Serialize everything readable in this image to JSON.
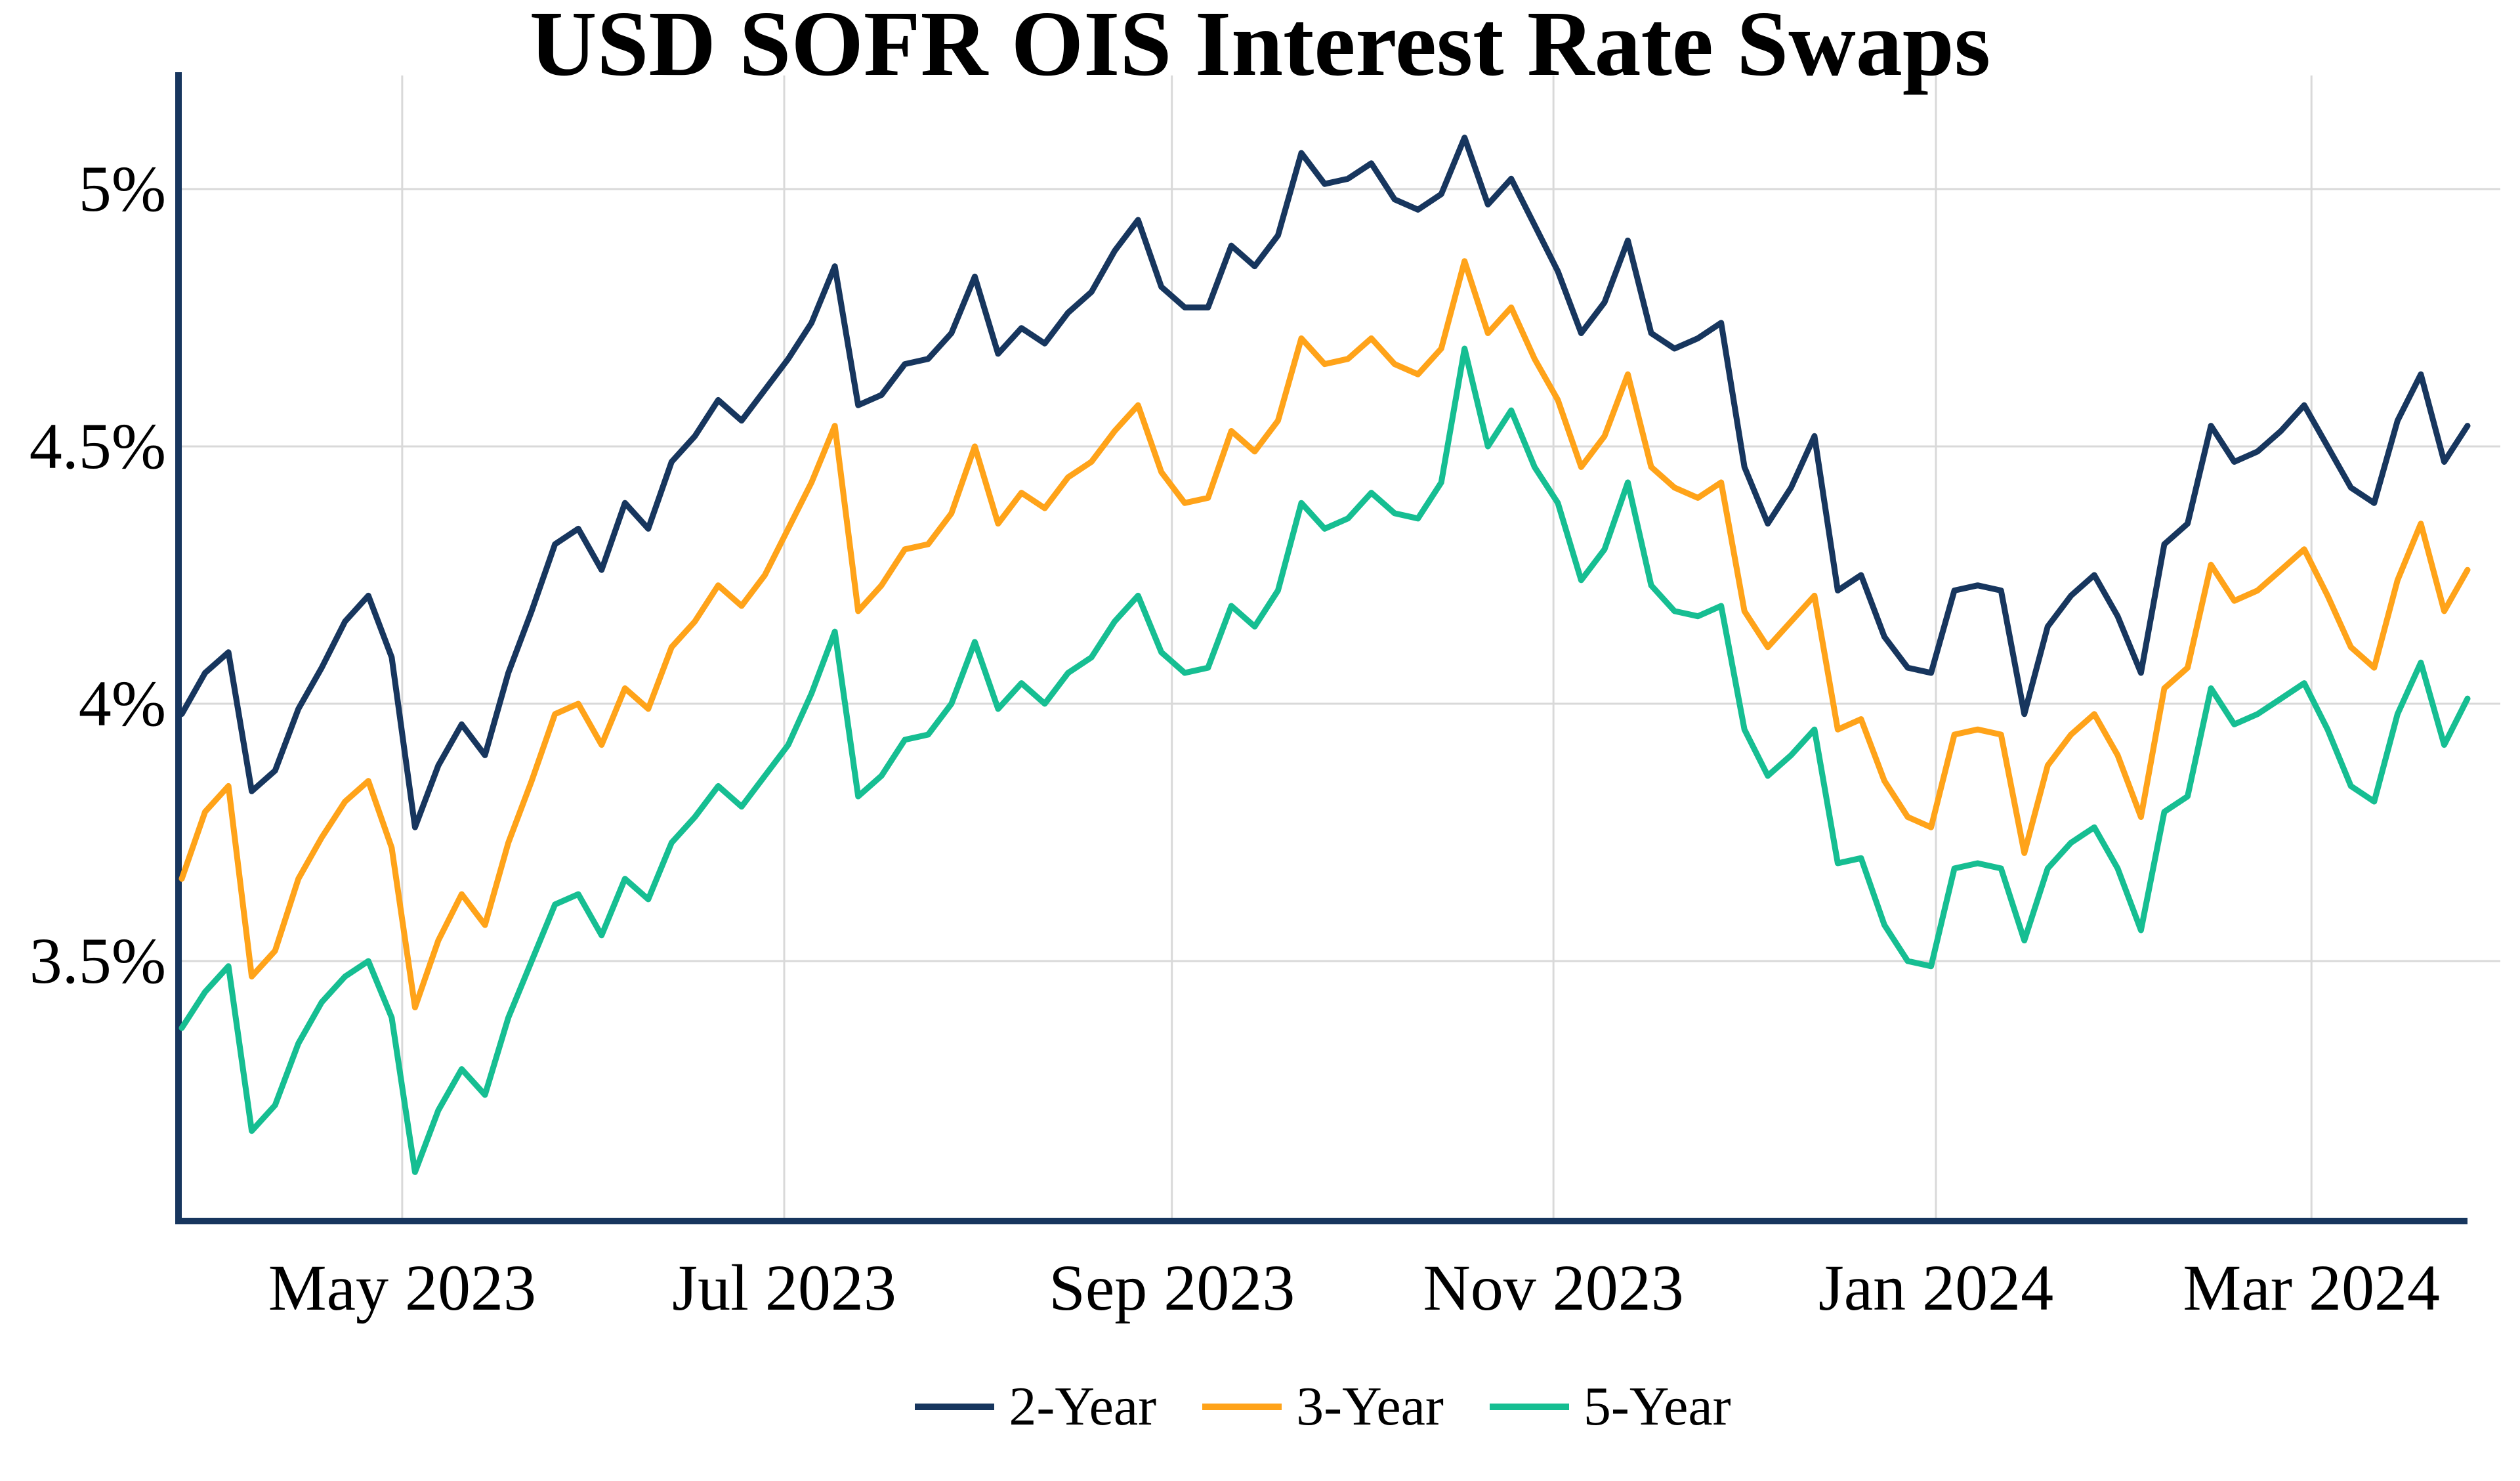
{
  "page": {
    "title": "USD SOFR OIS Interest Rate Swaps"
  },
  "chart_data": {
    "type": "line",
    "title": "USD SOFR OIS Interest Rate Swaps",
    "grid": true,
    "legend_position": "bottom",
    "x_axis": {
      "description": "Trading dates, late March 2023 through late March 2024",
      "start_date": "2023-03-28",
      "end_date": "2024-03-27",
      "n_points": 99,
      "ticks": [
        {
          "label": "May 2023",
          "index": 9.45
        },
        {
          "label": "Jul 2023",
          "index": 25.83
        },
        {
          "label": "Sep 2023",
          "index": 42.45
        },
        {
          "label": "Nov 2023",
          "index": 58.81
        },
        {
          "label": "Jan 2024",
          "index": 75.21
        },
        {
          "label": "Mar 2024",
          "index": 91.31
        }
      ]
    },
    "y_axis": {
      "unit": "%",
      "min": 3.0,
      "max": 5.22,
      "ticks": [
        {
          "label": "5%",
          "value": 5.0
        },
        {
          "label": "4.5%",
          "value": 4.5
        },
        {
          "label": "4%",
          "value": 4.0
        },
        {
          "label": "3.5%",
          "value": 3.5
        }
      ]
    },
    "colors": {
      "axis": "#17365E",
      "gridline": "#D9D9D9",
      "series_2y": "#17365E",
      "series_3y": "#FFA319",
      "series_5y": "#16BE92"
    },
    "series": [
      {
        "name": "2-Year",
        "color": "#17365E",
        "values": [
          3.98,
          4.06,
          4.1,
          3.83,
          3.87,
          3.99,
          4.07,
          4.16,
          4.21,
          4.09,
          3.76,
          3.88,
          3.96,
          3.9,
          4.06,
          4.18,
          4.31,
          4.34,
          4.26,
          4.39,
          4.34,
          4.47,
          4.52,
          4.59,
          4.55,
          4.61,
          4.67,
          4.74,
          4.85,
          4.58,
          4.6,
          4.66,
          4.67,
          4.72,
          4.83,
          4.68,
          4.73,
          4.7,
          4.76,
          4.8,
          4.88,
          4.94,
          4.81,
          4.77,
          4.77,
          4.89,
          4.85,
          4.91,
          5.07,
          5.01,
          5.02,
          5.05,
          4.98,
          4.96,
          4.99,
          5.1,
          4.97,
          5.02,
          4.93,
          4.84,
          4.72,
          4.78,
          4.9,
          4.72,
          4.69,
          4.71,
          4.74,
          4.46,
          4.35,
          4.42,
          4.52,
          4.22,
          4.25,
          4.13,
          4.07,
          4.06,
          4.22,
          4.23,
          4.22,
          3.98,
          4.15,
          4.21,
          4.25,
          4.17,
          4.06,
          4.31,
          4.35,
          4.54,
          4.47,
          4.49,
          4.53,
          4.58,
          4.5,
          4.42,
          4.39,
          4.55,
          4.64,
          4.47,
          4.54
        ]
      },
      {
        "name": "3-Year",
        "color": "#FFA319",
        "values": [
          3.66,
          3.79,
          3.84,
          3.47,
          3.52,
          3.66,
          3.74,
          3.81,
          3.85,
          3.72,
          3.41,
          3.54,
          3.63,
          3.57,
          3.73,
          3.85,
          3.98,
          4.0,
          3.92,
          4.03,
          3.99,
          4.11,
          4.16,
          4.23,
          4.19,
          4.25,
          4.34,
          4.43,
          4.54,
          4.18,
          4.23,
          4.3,
          4.31,
          4.37,
          4.5,
          4.35,
          4.41,
          4.38,
          4.44,
          4.47,
          4.53,
          4.58,
          4.45,
          4.39,
          4.4,
          4.53,
          4.49,
          4.55,
          4.71,
          4.66,
          4.67,
          4.71,
          4.66,
          4.64,
          4.69,
          4.86,
          4.72,
          4.77,
          4.67,
          4.59,
          4.46,
          4.52,
          4.64,
          4.46,
          4.42,
          4.4,
          4.43,
          4.18,
          4.11,
          4.16,
          4.21,
          3.95,
          3.97,
          3.85,
          3.78,
          3.76,
          3.94,
          3.95,
          3.94,
          3.71,
          3.88,
          3.94,
          3.98,
          3.9,
          3.78,
          4.03,
          4.07,
          4.27,
          4.2,
          4.22,
          4.26,
          4.3,
          4.21,
          4.11,
          4.07,
          4.24,
          4.35,
          4.18,
          4.26
        ]
      },
      {
        "name": "5-Year",
        "color": "#16BE92",
        "values": [
          3.37,
          3.44,
          3.49,
          3.17,
          3.22,
          3.34,
          3.42,
          3.47,
          3.5,
          3.39,
          3.09,
          3.21,
          3.29,
          3.24,
          3.39,
          3.5,
          3.61,
          3.63,
          3.55,
          3.66,
          3.62,
          3.73,
          3.78,
          3.84,
          3.8,
          3.86,
          3.92,
          4.02,
          4.14,
          3.82,
          3.86,
          3.93,
          3.94,
          4.0,
          4.12,
          3.99,
          4.04,
          4.0,
          4.06,
          4.09,
          4.16,
          4.21,
          4.1,
          4.06,
          4.07,
          4.19,
          4.15,
          4.22,
          4.39,
          4.34,
          4.36,
          4.41,
          4.37,
          4.36,
          4.43,
          4.69,
          4.5,
          4.57,
          4.46,
          4.39,
          4.24,
          4.3,
          4.43,
          4.23,
          4.18,
          4.17,
          4.19,
          3.95,
          3.86,
          3.9,
          3.95,
          3.69,
          3.7,
          3.57,
          3.5,
          3.49,
          3.68,
          3.69,
          3.68,
          3.54,
          3.68,
          3.73,
          3.76,
          3.68,
          3.56,
          3.79,
          3.82,
          4.03,
          3.96,
          3.98,
          4.01,
          4.04,
          3.95,
          3.84,
          3.81,
          3.98,
          4.08,
          3.92,
          4.01
        ]
      }
    ]
  }
}
